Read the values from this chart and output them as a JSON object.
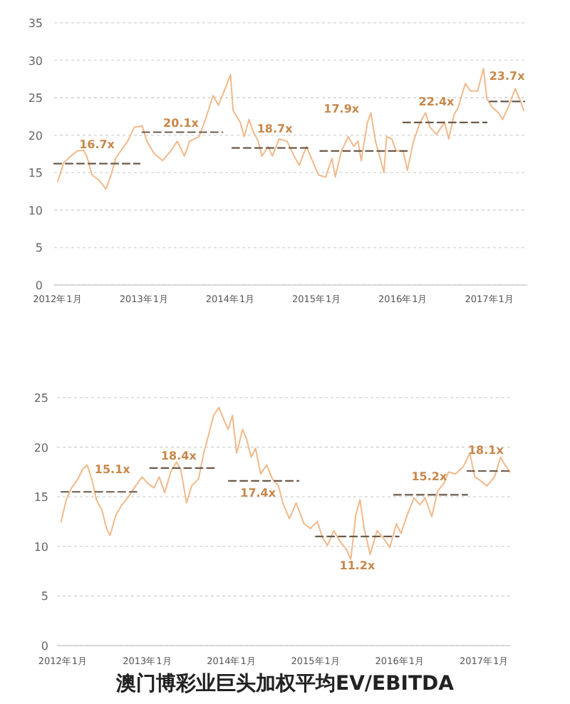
{
  "chart_data": [
    {
      "type": "line",
      "xlim": [
        "2011-12-17",
        "2017-06-09"
      ],
      "ylim": [
        0,
        35
      ],
      "xticks": [
        {
          "value": "2012-01-01",
          "label": "2012年1月"
        },
        {
          "value": "2013-01-01",
          "label": "2013年1月"
        },
        {
          "value": "2014-01-01",
          "label": "2014年1月"
        },
        {
          "value": "2015-01-01",
          "label": "2015年1月"
        },
        {
          "value": "2016-01-01",
          "label": "2016年1月"
        },
        {
          "value": "2017-01-01",
          "label": "2017年1月"
        }
      ],
      "yticks": [
        0,
        5,
        10,
        15,
        20,
        25,
        30,
        35
      ],
      "grid": "y",
      "marker": "none",
      "series": [
        {
          "color": "#f2b98a",
          "line_style": "solid",
          "x": [
            "2012-01-01",
            "2012-01-26",
            "2012-02-25",
            "2012-03-24",
            "2012-04-19",
            "2012-05-03",
            "2012-05-25",
            "2012-06-24",
            "2012-07-23",
            "2012-08-14",
            "2012-09-02",
            "2012-09-24",
            "2012-10-23",
            "2012-11-21",
            "2012-12-24",
            "2013-01-12",
            "2013-02-11",
            "2013-03-20",
            "2013-04-23",
            "2013-05-21",
            "2013-06-20",
            "2013-07-12",
            "2013-08-21",
            "2013-09-20",
            "2013-10-19",
            "2013-11-11",
            "2013-12-09",
            "2014-01-01",
            "2014-01-12",
            "2014-02-11",
            "2014-02-28",
            "2014-03-20",
            "2014-04-08",
            "2014-04-28",
            "2014-05-14",
            "2014-06-09",
            "2014-06-27",
            "2014-07-26",
            "2014-08-28",
            "2014-09-27",
            "2014-10-19",
            "2014-11-18",
            "2014-12-17",
            "2015-01-08",
            "2015-02-07",
            "2015-03-06",
            "2015-03-20",
            "2015-04-15",
            "2015-05-14",
            "2015-06-06",
            "2015-06-24",
            "2015-07-08",
            "2015-08-03",
            "2015-08-18",
            "2015-09-06",
            "2015-09-24",
            "2015-10-12",
            "2015-10-23",
            "2015-11-14",
            "2015-12-02",
            "2016-01-01",
            "2016-01-19",
            "2016-02-14",
            "2016-03-13",
            "2016-04-05",
            "2016-04-23",
            "2016-05-21",
            "2016-06-24",
            "2016-07-12",
            "2016-08-03",
            "2016-08-21",
            "2016-09-20",
            "2016-10-12",
            "2016-11-11",
            "2016-12-06",
            "2016-12-20",
            "2017-01-12",
            "2017-02-07",
            "2017-02-25",
            "2017-03-20",
            "2017-04-19",
            "2017-05-11",
            "2017-05-25"
          ],
          "values": [
            13.8,
            16.3,
            17.2,
            17.9,
            18.0,
            17.2,
            14.7,
            14.0,
            12.8,
            14.7,
            16.9,
            17.9,
            19.2,
            21.1,
            21.2,
            19.2,
            17.6,
            16.6,
            17.9,
            19.2,
            17.2,
            19.2,
            19.8,
            22.4,
            25.3,
            24.0,
            26.2,
            28.1,
            23.3,
            21.7,
            19.8,
            22.1,
            20.4,
            19.2,
            17.2,
            18.5,
            17.2,
            19.5,
            19.2,
            17.2,
            16.0,
            18.5,
            16.3,
            14.7,
            14.4,
            16.9,
            14.4,
            17.9,
            19.8,
            18.5,
            19.2,
            16.6,
            21.7,
            23.0,
            19.2,
            17.2,
            15.0,
            19.8,
            19.5,
            17.9,
            17.9,
            15.3,
            19.2,
            21.7,
            23.0,
            21.1,
            20.1,
            21.7,
            19.5,
            22.7,
            23.7,
            26.9,
            25.9,
            25.9,
            28.9,
            24.9,
            23.7,
            23.0,
            22.1,
            23.7,
            26.2,
            24.6,
            23.3
          ]
        },
        {
          "color": "#6b5a4a",
          "line_style": "dashed",
          "x": [
            "2011-12-17",
            "2012-12-13"
          ],
          "values": [
            16.2,
            16.2
          ]
        },
        {
          "color": "#6b5a4a",
          "line_style": "dashed",
          "x": [
            "2012-12-24",
            "2013-11-28"
          ],
          "values": [
            20.4,
            20.4
          ]
        },
        {
          "color": "#6b5a4a",
          "line_style": "dashed",
          "x": [
            "2014-01-08",
            "2014-11-28"
          ],
          "values": [
            18.3,
            18.3
          ]
        },
        {
          "color": "#6b5a4a",
          "line_style": "dashed",
          "x": [
            "2015-01-15",
            "2016-01-23"
          ],
          "values": [
            17.9,
            17.9
          ]
        },
        {
          "color": "#6b5a4a",
          "line_style": "dashed",
          "x": [
            "2016-01-01",
            "2016-12-20"
          ],
          "values": [
            21.7,
            21.7
          ]
        },
        {
          "color": "#6b5a4a",
          "line_style": "dashed",
          "x": [
            "2017-01-01",
            "2017-05-28"
          ],
          "values": [
            24.5,
            24.5
          ]
        }
      ],
      "annotations": [
        "16.7x",
        "20.1x",
        "18.7x",
        "17.9x",
        "22.4x",
        "23.7x"
      ]
    },
    {
      "type": "line",
      "title": "澳门博彩业巨头加权平均EV/EBITDA",
      "xlim": [
        "2011-12-06",
        "2017-04-23"
      ],
      "ylim": [
        0,
        25
      ],
      "xticks": [
        {
          "value": "2012-01-01",
          "label": "2012年1月"
        },
        {
          "value": "2013-01-01",
          "label": "2013年1月"
        },
        {
          "value": "2014-01-01",
          "label": "2014年1月"
        },
        {
          "value": "2015-01-01",
          "label": "2015年1月"
        },
        {
          "value": "2016-01-01",
          "label": "2016年1月"
        },
        {
          "value": "2017-01-01",
          "label": "2017年1月"
        }
      ],
      "yticks": [
        0,
        5,
        10,
        15,
        20,
        25
      ],
      "grid": "y",
      "marker": "none",
      "series": [
        {
          "color": "#f2b98a",
          "line_style": "solid",
          "x": [
            "2011-12-24",
            "2012-01-15",
            "2012-02-07",
            "2012-03-06",
            "2012-03-27",
            "2012-04-15",
            "2012-05-07",
            "2012-05-25",
            "2012-06-17",
            "2012-07-08",
            "2012-07-23",
            "2012-08-18",
            "2012-09-13",
            "2012-10-08",
            "2012-11-11",
            "2012-12-09",
            "2013-01-05",
            "2013-01-30",
            "2013-02-21",
            "2013-03-17",
            "2013-04-12",
            "2013-05-07",
            "2013-05-25",
            "2013-06-20",
            "2013-07-12",
            "2013-08-11",
            "2013-09-02",
            "2013-09-24",
            "2013-10-15",
            "2013-11-07",
            "2013-11-28",
            "2013-12-17",
            "2014-01-05",
            "2014-01-23",
            "2014-02-18",
            "2014-03-06",
            "2014-03-27",
            "2014-04-15",
            "2014-05-07",
            "2014-06-02",
            "2014-06-27",
            "2014-07-23",
            "2014-08-14",
            "2014-09-09",
            "2014-10-08",
            "2014-11-11",
            "2014-12-09",
            "2015-01-08",
            "2015-01-30",
            "2015-02-21",
            "2015-03-20",
            "2015-04-19",
            "2015-05-14",
            "2015-06-02",
            "2015-06-24",
            "2015-07-12",
            "2015-07-30",
            "2015-08-25",
            "2015-09-24",
            "2015-10-19",
            "2015-11-18",
            "2015-12-17",
            "2016-01-05",
            "2016-02-07",
            "2016-03-02",
            "2016-03-27",
            "2016-04-19",
            "2016-05-18",
            "2016-06-13",
            "2016-07-08",
            "2016-07-30",
            "2016-08-28",
            "2016-10-01",
            "2016-10-30",
            "2016-11-21",
            "2016-12-17",
            "2017-01-12",
            "2017-02-14",
            "2017-03-13",
            "2017-04-01",
            "2017-04-23"
          ],
          "values": [
            12.5,
            14.7,
            15.9,
            16.8,
            17.8,
            18.2,
            16.6,
            14.7,
            13.7,
            11.8,
            11.1,
            13.2,
            14.2,
            14.9,
            16.1,
            17.0,
            16.3,
            15.9,
            17.0,
            15.4,
            17.5,
            18.5,
            17.8,
            14.4,
            16.1,
            16.8,
            19.4,
            21.3,
            23.2,
            24.0,
            22.8,
            21.8,
            23.2,
            19.4,
            21.8,
            20.9,
            19.0,
            19.9,
            17.3,
            18.2,
            16.8,
            16.1,
            14.2,
            12.8,
            14.4,
            12.3,
            11.8,
            12.5,
            10.9,
            10.1,
            11.6,
            10.4,
            9.7,
            8.7,
            13.2,
            14.7,
            11.8,
            9.2,
            11.6,
            10.9,
            9.9,
            12.3,
            11.3,
            13.5,
            14.9,
            14.2,
            14.9,
            13.0,
            15.6,
            16.3,
            17.5,
            17.3,
            18.0,
            19.4,
            17.0,
            16.6,
            16.1,
            17.0,
            19.0,
            18.2,
            17.5
          ]
        },
        {
          "color": "#6b5a4a",
          "line_style": "dashed",
          "x": [
            "2011-12-24",
            "2012-11-21"
          ],
          "values": [
            15.5,
            15.5
          ]
        },
        {
          "color": "#6b5a4a",
          "line_style": "dashed",
          "x": [
            "2013-01-12",
            "2013-10-26"
          ],
          "values": [
            17.9,
            17.9
          ]
        },
        {
          "color": "#6b5a4a",
          "line_style": "dashed",
          "x": [
            "2013-12-20",
            "2014-10-19"
          ],
          "values": [
            16.6,
            16.6
          ]
        },
        {
          "color": "#6b5a4a",
          "line_style": "dashed",
          "x": [
            "2015-01-01",
            "2015-12-27"
          ],
          "values": [
            11.0,
            11.0
          ]
        },
        {
          "color": "#6b5a4a",
          "line_style": "dashed",
          "x": [
            "2015-12-06",
            "2016-10-19"
          ],
          "values": [
            15.2,
            15.2
          ]
        },
        {
          "color": "#6b5a4a",
          "line_style": "dashed",
          "x": [
            "2016-10-19",
            "2017-04-23"
          ],
          "values": [
            17.6,
            17.6
          ]
        }
      ],
      "annotations": [
        "15.1x",
        "18.4x",
        "17.4x",
        "11.2x",
        "15.2x",
        "18.1x"
      ]
    }
  ]
}
